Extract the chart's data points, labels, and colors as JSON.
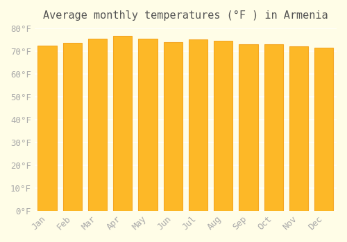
{
  "title": "Average monthly temperatures (°F ) in Armenia",
  "months": [
    "Jan",
    "Feb",
    "Mar",
    "Apr",
    "May",
    "Jun",
    "Jul",
    "Aug",
    "Sep",
    "Oct",
    "Nov",
    "Dec"
  ],
  "values": [
    72.5,
    73.5,
    75.5,
    76.5,
    75.5,
    74.0,
    75.0,
    74.5,
    73.0,
    73.0,
    72.0,
    71.5
  ],
  "bar_color_main": "#FDB827",
  "bar_color_edge": "#F5A623",
  "background_color": "#FFFDE7",
  "grid_color": "#FFFFFF",
  "tick_color": "#AAAAAA",
  "title_color": "#555555",
  "ylim": [
    0,
    80
  ],
  "yticks": [
    0,
    10,
    20,
    30,
    40,
    50,
    60,
    70,
    80
  ],
  "title_fontsize": 11,
  "tick_fontsize": 9
}
